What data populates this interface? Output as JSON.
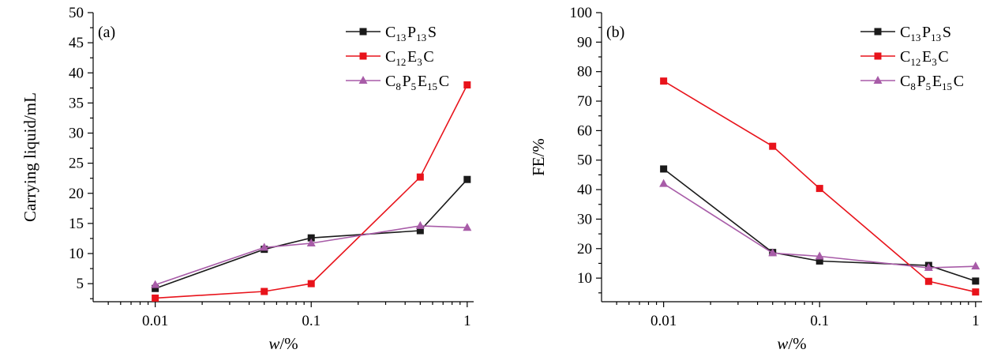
{
  "chart_data": [
    {
      "type": "line",
      "panel_label": "(a)",
      "xscale": "log",
      "x": [
        0.01,
        0.05,
        0.1,
        0.5,
        1
      ],
      "xlim": [
        0.004,
        1.1
      ],
      "xticks": [
        "0.01",
        "0.1",
        "1"
      ],
      "xticks_values": [
        0.01,
        0.1,
        1
      ],
      "xlabel_italic": "w",
      "xlabel_rest": "/%",
      "ylabel": "Carrying liquid/mL",
      "ylim": [
        2,
        50
      ],
      "yticks": [
        5,
        10,
        15,
        20,
        25,
        30,
        35,
        40,
        45,
        50
      ],
      "legend_position": "top-right",
      "series": [
        {
          "name_parts": [
            [
              "C",
              "13"
            ],
            [
              "P",
              "13"
            ],
            [
              "S",
              ""
            ]
          ],
          "color": "#1a1a1a",
          "marker": "square",
          "values": [
            4.2,
            10.7,
            12.6,
            13.8,
            22.3
          ]
        },
        {
          "name_parts": [
            [
              "C",
              "12"
            ],
            [
              "E",
              "3"
            ],
            [
              "C",
              ""
            ]
          ],
          "color": "#e8131b",
          "marker": "square",
          "values": [
            2.6,
            3.7,
            5.0,
            22.7,
            38.0
          ]
        },
        {
          "name_parts": [
            [
              "C",
              "8"
            ],
            [
              "P",
              "5"
            ],
            [
              "E",
              "15"
            ],
            [
              "C",
              ""
            ]
          ],
          "color": "#a85ca8",
          "marker": "triangle",
          "values": [
            4.8,
            11.0,
            11.7,
            14.6,
            14.3
          ]
        }
      ]
    },
    {
      "type": "line",
      "panel_label": "(b)",
      "xscale": "log",
      "x": [
        0.01,
        0.05,
        0.1,
        0.5,
        1
      ],
      "xlim": [
        0.004,
        1.1
      ],
      "xticks": [
        "0.01",
        "0.1",
        "1"
      ],
      "xticks_values": [
        0.01,
        0.1,
        1
      ],
      "xlabel_italic": "w",
      "xlabel_rest": "/%",
      "ylabel": "FE/%",
      "ylim": [
        2,
        100
      ],
      "yticks": [
        10,
        20,
        30,
        40,
        50,
        60,
        70,
        80,
        90,
        100
      ],
      "legend_position": "top-right",
      "series": [
        {
          "name_parts": [
            [
              "C",
              "13"
            ],
            [
              "P",
              "13"
            ],
            [
              "S",
              ""
            ]
          ],
          "color": "#1a1a1a",
          "marker": "square",
          "values": [
            47.0,
            18.7,
            15.8,
            14.3,
            9.0
          ]
        },
        {
          "name_parts": [
            [
              "C",
              "12"
            ],
            [
              "E",
              "3"
            ],
            [
              "C",
              ""
            ]
          ],
          "color": "#e8131b",
          "marker": "square",
          "values": [
            76.8,
            54.7,
            40.4,
            8.9,
            5.3
          ]
        },
        {
          "name_parts": [
            [
              "C",
              "8"
            ],
            [
              "P",
              "5"
            ],
            [
              "E",
              "15"
            ],
            [
              "C",
              ""
            ]
          ],
          "color": "#a85ca8",
          "marker": "triangle",
          "values": [
            42.0,
            18.5,
            17.4,
            13.5,
            14.0
          ]
        }
      ]
    }
  ]
}
